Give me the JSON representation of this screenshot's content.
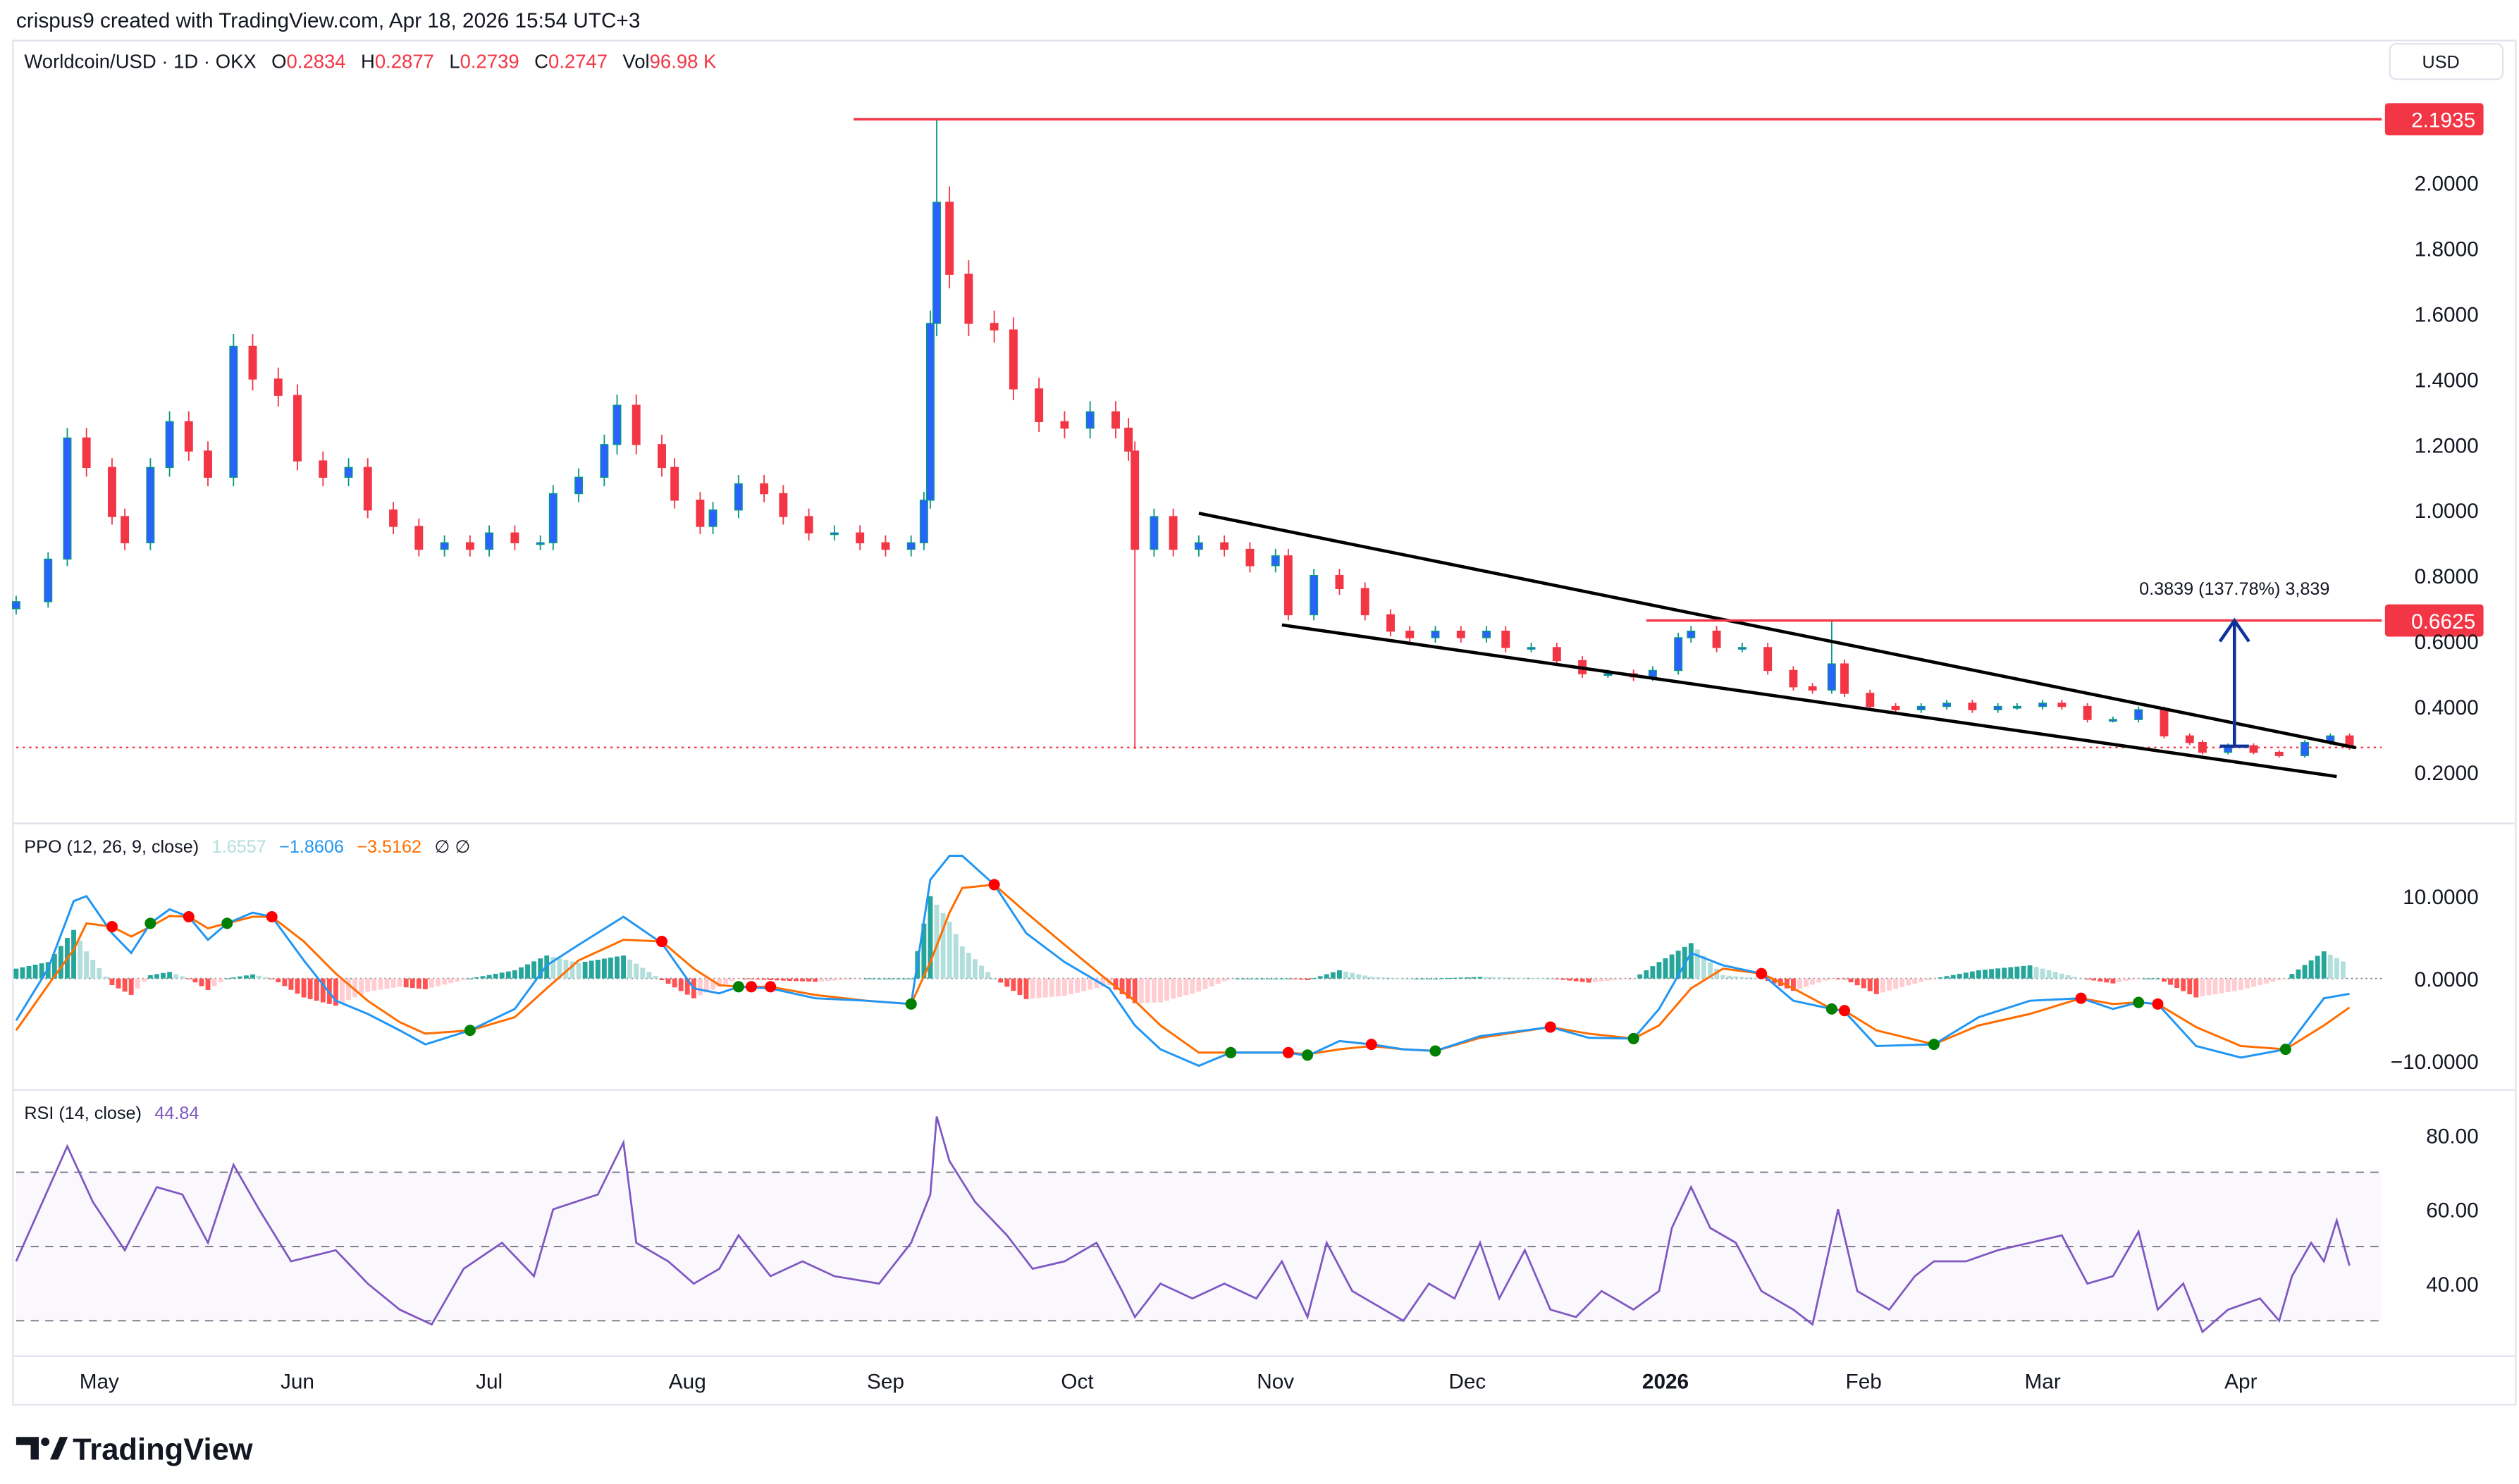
{
  "header": {
    "credit": "crispus9 created with TradingView.com, Apr 18, 2026 15:54 UTC+3"
  },
  "legend": {
    "symbol": "Worldcoin/USD · 1D · OKX",
    "o_label": "O",
    "o": "0.2834",
    "h_label": "H",
    "h": "0.2877",
    "l_label": "L",
    "l": "0.2739",
    "c_label": "C",
    "c": "0.2747",
    "vol_label": "Vol",
    "vol": "96.98 K"
  },
  "currency": "USD",
  "colors": {
    "up": "#089981",
    "up_fill": "#2962ff",
    "down": "#f23645",
    "ppo": "#2196f3",
    "signal": "#ff6d00",
    "rsi": "#7e57c2",
    "level": "#f23645",
    "measure": "#0d3399"
  },
  "footer": {
    "logo": "TradingView"
  },
  "price_pane": {
    "ticks": [
      "2.0000",
      "1.8000",
      "1.6000",
      "1.4000",
      "1.2000",
      "1.0000",
      "0.8000",
      "0.6000",
      "0.4000",
      "0.2000"
    ],
    "levels": [
      {
        "value": 2.1935,
        "label": "2.1935",
        "from": "2025-08-27"
      },
      {
        "value": 0.6625,
        "label": "0.6625",
        "from": "2025-12-29"
      }
    ],
    "last_price": 0.2747,
    "measure": {
      "date": "2026-03-31",
      "from": 0.2786,
      "to": 0.6625,
      "label": "0.3839 (137.78%) 3,839"
    },
    "trendlines": [
      {
        "name": "upper",
        "start": [
          "2025-10-20",
          0.99
        ],
        "end": [
          "2026-04-19",
          0.274
        ]
      },
      {
        "name": "lower",
        "start": [
          "2025-11-02",
          0.649
        ],
        "end": [
          "2026-04-16",
          0.186
        ]
      }
    ],
    "extremes": [
      {
        "date": "2025-09-09",
        "high": 2.1935
      },
      {
        "date": "2025-10-10",
        "low": 0.27
      },
      {
        "date": "2026-01-27",
        "high": 0.66
      }
    ]
  },
  "ppo_pane": {
    "title": "PPO (12, 26, 9, close)",
    "hist_value": "1.6557",
    "ppo_value": "−1.8606",
    "signal_value": "−3.5162",
    "extra": "∅ ∅",
    "ticks": [
      "10.0000",
      "0.0000",
      "−10.0000"
    ]
  },
  "rsi_pane": {
    "title": "RSI (14, close)",
    "value": "44.84",
    "ticks": [
      "80.00",
      "60.00",
      "40.00"
    ],
    "bands": [
      70,
      50,
      30
    ]
  },
  "time_axis": [
    {
      "label": "May",
      "date": "2025-05-01"
    },
    {
      "label": "Jun",
      "date": "2025-06-01"
    },
    {
      "label": "Jul",
      "date": "2025-07-01"
    },
    {
      "label": "Aug",
      "date": "2025-08-01"
    },
    {
      "label": "Sep",
      "date": "2025-09-01"
    },
    {
      "label": "Oct",
      "date": "2025-10-01"
    },
    {
      "label": "Nov",
      "date": "2025-11-01"
    },
    {
      "label": "Dec",
      "date": "2025-12-01"
    },
    {
      "label": "2026",
      "date": "2026-01-01",
      "bold": true
    },
    {
      "label": "Feb",
      "date": "2026-02-01"
    },
    {
      "label": "Mar",
      "date": "2026-03-01"
    },
    {
      "label": "Apr",
      "date": "2026-04-01"
    }
  ],
  "chart_data": {
    "type": "candlestick",
    "title": "Worldcoin/USD · 1D · OKX",
    "ylim": [
      0.1,
      2.3
    ],
    "close": [
      [
        "2025-04-18",
        0.72
      ],
      [
        "2025-04-23",
        0.85
      ],
      [
        "2025-04-26",
        1.22
      ],
      [
        "2025-04-29",
        1.13
      ],
      [
        "2025-05-03",
        0.98
      ],
      [
        "2025-05-05",
        0.9
      ],
      [
        "2025-05-09",
        1.13
      ],
      [
        "2025-05-12",
        1.27
      ],
      [
        "2025-05-15",
        1.18
      ],
      [
        "2025-05-18",
        1.1
      ],
      [
        "2025-05-22",
        1.5
      ],
      [
        "2025-05-25",
        1.4
      ],
      [
        "2025-05-29",
        1.35
      ],
      [
        "2025-06-01",
        1.15
      ],
      [
        "2025-06-05",
        1.1
      ],
      [
        "2025-06-09",
        1.13
      ],
      [
        "2025-06-12",
        1.0
      ],
      [
        "2025-06-16",
        0.95
      ],
      [
        "2025-06-20",
        0.88
      ],
      [
        "2025-06-24",
        0.9
      ],
      [
        "2025-06-28",
        0.88
      ],
      [
        "2025-07-01",
        0.93
      ],
      [
        "2025-07-05",
        0.9
      ],
      [
        "2025-07-09",
        0.9
      ],
      [
        "2025-07-11",
        1.05
      ],
      [
        "2025-07-15",
        1.1
      ],
      [
        "2025-07-19",
        1.2
      ],
      [
        "2025-07-21",
        1.32
      ],
      [
        "2025-07-24",
        1.2
      ],
      [
        "2025-07-28",
        1.13
      ],
      [
        "2025-07-30",
        1.03
      ],
      [
        "2025-08-03",
        0.95
      ],
      [
        "2025-08-05",
        1.0
      ],
      [
        "2025-08-09",
        1.08
      ],
      [
        "2025-08-13",
        1.05
      ],
      [
        "2025-08-16",
        0.98
      ],
      [
        "2025-08-20",
        0.93
      ],
      [
        "2025-08-24",
        0.93
      ],
      [
        "2025-08-28",
        0.9
      ],
      [
        "2025-09-01",
        0.88
      ],
      [
        "2025-09-05",
        0.9
      ],
      [
        "2025-09-07",
        1.03
      ],
      [
        "2025-09-08",
        1.57
      ],
      [
        "2025-09-09",
        1.94
      ],
      [
        "2025-09-11",
        1.72
      ],
      [
        "2025-09-14",
        1.57
      ],
      [
        "2025-09-18",
        1.55
      ],
      [
        "2025-09-21",
        1.37
      ],
      [
        "2025-09-25",
        1.27
      ],
      [
        "2025-09-29",
        1.25
      ],
      [
        "2025-10-03",
        1.3
      ],
      [
        "2025-10-07",
        1.25
      ],
      [
        "2025-10-09",
        1.18
      ],
      [
        "2025-10-10",
        0.88
      ],
      [
        "2025-10-13",
        0.98
      ],
      [
        "2025-10-16",
        0.88
      ],
      [
        "2025-10-20",
        0.9
      ],
      [
        "2025-10-24",
        0.88
      ],
      [
        "2025-10-28",
        0.83
      ],
      [
        "2025-11-01",
        0.86
      ],
      [
        "2025-11-03",
        0.68
      ],
      [
        "2025-11-07",
        0.8
      ],
      [
        "2025-11-11",
        0.76
      ],
      [
        "2025-11-15",
        0.68
      ],
      [
        "2025-11-19",
        0.63
      ],
      [
        "2025-11-22",
        0.61
      ],
      [
        "2025-11-26",
        0.63
      ],
      [
        "2025-11-30",
        0.61
      ],
      [
        "2025-12-04",
        0.63
      ],
      [
        "2025-12-07",
        0.58
      ],
      [
        "2025-12-11",
        0.58
      ],
      [
        "2025-12-15",
        0.54
      ],
      [
        "2025-12-19",
        0.5
      ],
      [
        "2025-12-23",
        0.5
      ],
      [
        "2025-12-27",
        0.49
      ],
      [
        "2025-12-30",
        0.51
      ],
      [
        "2026-01-03",
        0.61
      ],
      [
        "2026-01-05",
        0.63
      ],
      [
        "2026-01-09",
        0.58
      ],
      [
        "2026-01-13",
        0.58
      ],
      [
        "2026-01-17",
        0.51
      ],
      [
        "2026-01-21",
        0.46
      ],
      [
        "2026-01-24",
        0.45
      ],
      [
        "2026-01-27",
        0.53
      ],
      [
        "2026-01-29",
        0.44
      ],
      [
        "2026-02-02",
        0.4
      ],
      [
        "2026-02-06",
        0.39
      ],
      [
        "2026-02-10",
        0.4
      ],
      [
        "2026-02-14",
        0.41
      ],
      [
        "2026-02-18",
        0.39
      ],
      [
        "2026-02-22",
        0.4
      ],
      [
        "2026-02-25",
        0.4
      ],
      [
        "2026-03-01",
        0.41
      ],
      [
        "2026-03-04",
        0.4
      ],
      [
        "2026-03-08",
        0.36
      ],
      [
        "2026-03-12",
        0.36
      ],
      [
        "2026-03-16",
        0.39
      ],
      [
        "2026-03-20",
        0.31
      ],
      [
        "2026-03-24",
        0.29
      ],
      [
        "2026-03-26",
        0.26
      ],
      [
        "2026-03-30",
        0.28
      ],
      [
        "2026-04-03",
        0.26
      ],
      [
        "2026-04-07",
        0.25
      ],
      [
        "2026-04-11",
        0.29
      ],
      [
        "2026-04-15",
        0.31
      ],
      [
        "2026-04-18",
        0.2747
      ]
    ],
    "ppo": [
      [
        "2025-04-18",
        -5.1,
        -6.3
      ],
      [
        "2025-04-23",
        1.2,
        -0.8
      ],
      [
        "2025-04-27",
        9.4,
        3.5
      ],
      [
        "2025-04-29",
        10,
        6.7
      ],
      [
        "2025-05-03",
        5.5,
        6.3
      ],
      [
        "2025-05-06",
        3.1,
        5.1
      ],
      [
        "2025-05-09",
        6.7,
        6.3
      ],
      [
        "2025-05-12",
        8.4,
        7.6
      ],
      [
        "2025-05-15",
        7.5,
        7.5
      ],
      [
        "2025-05-18",
        4.7,
        6.1
      ],
      [
        "2025-05-21",
        6.7,
        6.7
      ],
      [
        "2025-05-25",
        8,
        7.5
      ],
      [
        "2025-05-28",
        7.5,
        7.5
      ],
      [
        "2025-06-02",
        2.2,
        4.5
      ],
      [
        "2025-06-07",
        -2.7,
        0.6
      ],
      [
        "2025-06-12",
        -4.3,
        -2.7
      ],
      [
        "2025-06-17",
        -6.3,
        -5.3
      ],
      [
        "2025-06-21",
        -8,
        -6.7
      ],
      [
        "2025-06-28",
        -6.3,
        -6.3
      ],
      [
        "2025-07-05",
        -3.7,
        -4.7
      ],
      [
        "2025-07-10",
        1.6,
        -1.2
      ],
      [
        "2025-07-15",
        4.1,
        2.2
      ],
      [
        "2025-07-22",
        7.5,
        4.7
      ],
      [
        "2025-07-28",
        4.3,
        4.5
      ],
      [
        "2025-08-02",
        -1.2,
        1.2
      ],
      [
        "2025-08-06",
        -1.8,
        -0.8
      ],
      [
        "2025-08-09",
        -1,
        -1
      ],
      [
        "2025-08-14",
        -1.2,
        -1
      ],
      [
        "2025-08-21",
        -2.4,
        -2
      ],
      [
        "2025-08-29",
        -2.7,
        -2.7
      ],
      [
        "2025-09-05",
        -3.1,
        -3.1
      ],
      [
        "2025-09-08",
        12,
        2
      ],
      [
        "2025-09-11",
        14.9,
        8
      ],
      [
        "2025-09-13",
        14.9,
        11
      ],
      [
        "2025-09-18",
        11.4,
        11.4
      ],
      [
        "2025-09-23",
        5.5,
        8
      ],
      [
        "2025-09-29",
        2,
        4.1
      ],
      [
        "2025-10-06",
        -1.2,
        -0.4
      ],
      [
        "2025-10-10",
        -5.7,
        -2.7
      ],
      [
        "2025-10-14",
        -8.6,
        -5.7
      ],
      [
        "2025-10-20",
        -10.6,
        -9
      ],
      [
        "2025-10-25",
        -9,
        -9
      ],
      [
        "2025-11-03",
        -9,
        -9
      ],
      [
        "2025-11-06",
        -9.4,
        -9.2
      ],
      [
        "2025-11-11",
        -7.6,
        -8.6
      ],
      [
        "2025-11-16",
        -8,
        -8.2
      ],
      [
        "2025-11-21",
        -8.6,
        -8.6
      ],
      [
        "2025-11-26",
        -8.8,
        -8.8
      ],
      [
        "2025-12-03",
        -7,
        -7.2
      ],
      [
        "2025-12-14",
        -5.9,
        -5.9
      ],
      [
        "2025-12-20",
        -7.2,
        -6.7
      ],
      [
        "2025-12-27",
        -7.3,
        -7.3
      ],
      [
        "2025-12-31",
        -3.7,
        -5.7
      ],
      [
        "2026-01-05",
        3.1,
        -1.2
      ],
      [
        "2026-01-10",
        1.6,
        1.2
      ],
      [
        "2026-01-16",
        0.6,
        0.6
      ],
      [
        "2026-01-21",
        -2.7,
        -1.2
      ],
      [
        "2026-01-27",
        -3.7,
        -3.7
      ],
      [
        "2026-01-29",
        -4,
        -3.9
      ],
      [
        "2026-02-03",
        -8.2,
        -6.3
      ],
      [
        "2026-02-12",
        -8,
        -8
      ],
      [
        "2026-02-19",
        -4.7,
        -5.7
      ],
      [
        "2026-02-27",
        -2.7,
        -4.3
      ],
      [
        "2026-03-07",
        -2.4,
        -2.4
      ],
      [
        "2026-03-12",
        -3.7,
        -3.1
      ],
      [
        "2026-03-16",
        -2.9,
        -2.9
      ],
      [
        "2026-03-19",
        -3.1,
        -3.1
      ],
      [
        "2026-03-25",
        -8.2,
        -5.9
      ],
      [
        "2026-04-01",
        -9.6,
        -8.2
      ],
      [
        "2026-04-08",
        -8.6,
        -8.6
      ],
      [
        "2026-04-14",
        -2.4,
        -5.7
      ],
      [
        "2026-04-18",
        -1.8606,
        -3.5162
      ]
    ],
    "ppo_crosses": [
      [
        "2025-05-03",
        6.3,
        "down"
      ],
      [
        "2025-05-09",
        6.7,
        "up"
      ],
      [
        "2025-05-15",
        7.5,
        "down"
      ],
      [
        "2025-05-21",
        6.7,
        "up"
      ],
      [
        "2025-05-28",
        7.5,
        "down"
      ],
      [
        "2025-06-28",
        -6.3,
        "up"
      ],
      [
        "2025-07-28",
        4.5,
        "down"
      ],
      [
        "2025-08-09",
        -1,
        "up"
      ],
      [
        "2025-08-11",
        -1,
        "down"
      ],
      [
        "2025-08-14",
        -1,
        "down"
      ],
      [
        "2025-09-05",
        -3.1,
        "up"
      ],
      [
        "2025-09-18",
        11.4,
        "down"
      ],
      [
        "2025-10-25",
        -9,
        "up"
      ],
      [
        "2025-11-03",
        -9,
        "down"
      ],
      [
        "2025-11-06",
        -9.3,
        "up"
      ],
      [
        "2025-11-16",
        -8,
        "down"
      ],
      [
        "2025-11-26",
        -8.8,
        "up"
      ],
      [
        "2025-12-14",
        -5.9,
        "down"
      ],
      [
        "2025-12-27",
        -7.3,
        "up"
      ],
      [
        "2026-01-16",
        0.6,
        "down"
      ],
      [
        "2026-01-27",
        -3.7,
        "up"
      ],
      [
        "2026-01-29",
        -3.9,
        "down"
      ],
      [
        "2026-02-12",
        -8,
        "up"
      ],
      [
        "2026-03-07",
        -2.4,
        "down"
      ],
      [
        "2026-03-16",
        -2.9,
        "up"
      ],
      [
        "2026-03-19",
        -3.1,
        "down"
      ],
      [
        "2026-04-08",
        -8.6,
        "up"
      ]
    ],
    "rsi": [
      [
        "2025-04-18",
        46
      ],
      [
        "2025-04-26",
        77
      ],
      [
        "2025-04-30",
        62
      ],
      [
        "2025-05-05",
        49
      ],
      [
        "2025-05-10",
        66
      ],
      [
        "2025-05-14",
        64
      ],
      [
        "2025-05-18",
        51
      ],
      [
        "2025-05-22",
        72
      ],
      [
        "2025-05-26",
        60
      ],
      [
        "2025-05-31",
        46
      ],
      [
        "2025-06-07",
        49
      ],
      [
        "2025-06-12",
        40
      ],
      [
        "2025-06-17",
        33
      ],
      [
        "2025-06-22",
        29
      ],
      [
        "2025-06-27",
        44
      ],
      [
        "2025-07-03",
        51
      ],
      [
        "2025-07-08",
        42
      ],
      [
        "2025-07-11",
        60
      ],
      [
        "2025-07-18",
        64
      ],
      [
        "2025-07-22",
        78
      ],
      [
        "2025-07-24",
        51
      ],
      [
        "2025-07-29",
        46
      ],
      [
        "2025-08-02",
        40
      ],
      [
        "2025-08-06",
        44
      ],
      [
        "2025-08-09",
        53
      ],
      [
        "2025-08-14",
        42
      ],
      [
        "2025-08-19",
        46
      ],
      [
        "2025-08-24",
        42
      ],
      [
        "2025-08-31",
        40
      ],
      [
        "2025-09-05",
        51
      ],
      [
        "2025-09-08",
        64
      ],
      [
        "2025-09-09",
        85
      ],
      [
        "2025-09-11",
        73
      ],
      [
        "2025-09-15",
        62
      ],
      [
        "2025-09-20",
        53
      ],
      [
        "2025-09-24",
        44
      ],
      [
        "2025-09-29",
        46
      ],
      [
        "2025-10-04",
        51
      ],
      [
        "2025-10-08",
        38
      ],
      [
        "2025-10-10",
        31
      ],
      [
        "2025-10-14",
        40
      ],
      [
        "2025-10-19",
        36
      ],
      [
        "2025-10-24",
        40
      ],
      [
        "2025-10-29",
        36
      ],
      [
        "2025-11-02",
        46
      ],
      [
        "2025-11-06",
        31
      ],
      [
        "2025-11-09",
        51
      ],
      [
        "2025-11-13",
        38
      ],
      [
        "2025-11-18",
        33
      ],
      [
        "2025-11-21",
        30
      ],
      [
        "2025-11-25",
        40
      ],
      [
        "2025-11-29",
        36
      ],
      [
        "2025-12-03",
        51
      ],
      [
        "2025-12-06",
        36
      ],
      [
        "2025-12-10",
        49
      ],
      [
        "2025-12-14",
        33
      ],
      [
        "2025-12-18",
        31
      ],
      [
        "2025-12-22",
        38
      ],
      [
        "2025-12-27",
        33
      ],
      [
        "2025-12-31",
        38
      ],
      [
        "2026-01-02",
        55
      ],
      [
        "2026-01-05",
        66
      ],
      [
        "2026-01-08",
        55
      ],
      [
        "2026-01-12",
        51
      ],
      [
        "2026-01-16",
        38
      ],
      [
        "2026-01-21",
        33
      ],
      [
        "2026-01-24",
        29
      ],
      [
        "2026-01-28",
        60
      ],
      [
        "2026-01-31",
        38
      ],
      [
        "2026-02-05",
        33
      ],
      [
        "2026-02-09",
        42
      ],
      [
        "2026-02-12",
        46
      ],
      [
        "2026-02-17",
        46
      ],
      [
        "2026-02-22",
        49
      ],
      [
        "2026-02-27",
        51
      ],
      [
        "2026-03-04",
        53
      ],
      [
        "2026-03-08",
        40
      ],
      [
        "2026-03-12",
        42
      ],
      [
        "2026-03-16",
        54
      ],
      [
        "2026-03-19",
        33
      ],
      [
        "2026-03-23",
        40
      ],
      [
        "2026-03-26",
        27
      ],
      [
        "2026-03-30",
        33
      ],
      [
        "2026-04-04",
        36
      ],
      [
        "2026-04-07",
        30
      ],
      [
        "2026-04-09",
        42
      ],
      [
        "2026-04-12",
        51
      ],
      [
        "2026-04-14",
        46
      ],
      [
        "2026-04-16",
        57
      ],
      [
        "2026-04-18",
        44.84
      ]
    ]
  }
}
